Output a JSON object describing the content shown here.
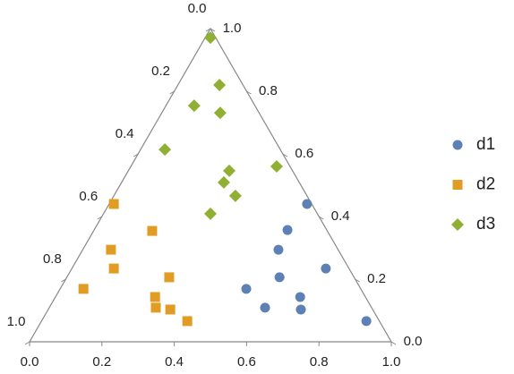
{
  "chart_data": {
    "type": "ternary",
    "xlim": [
      0,
      1
    ],
    "ylim": [
      0,
      1
    ],
    "bottom_ticks": [
      {
        "value": 0,
        "label": "0.0"
      },
      0.2,
      0.4,
      0.6,
      0.8,
      {
        "value": 1,
        "label": "1.0"
      }
    ],
    "right_ticks": [
      {
        "value": 0,
        "label": "0.0"
      },
      0.2,
      0.4,
      0.6,
      0.8,
      {
        "value": 1,
        "label": "1.0"
      }
    ],
    "left_ticks": [
      {
        "value": 0,
        "label": "0.0"
      },
      0.2,
      0.4,
      0.6,
      0.8,
      {
        "value": 1,
        "label": "1.0"
      }
    ],
    "series": [
      {
        "name": "d1",
        "color": "#5e81b5",
        "marker": "circle",
        "x": [
          0.767,
          0.713,
          0.688,
          0.819,
          0.691,
          0.599,
          0.748,
          0.651,
          0.75,
          0.931
        ],
        "values": [
          0.44,
          0.357,
          0.294,
          0.234,
          0.206,
          0.169,
          0.143,
          0.109,
          0.103,
          0.066
        ]
      },
      {
        "name": "d2",
        "color": "#e19c24",
        "marker": "square",
        "x": [
          0.233,
          0.339,
          0.225,
          0.233,
          0.386,
          0.149,
          0.347,
          0.349,
          0.389,
          0.436
        ],
        "values": [
          0.44,
          0.354,
          0.294,
          0.234,
          0.206,
          0.169,
          0.143,
          0.109,
          0.103,
          0.066
        ]
      },
      {
        "name": "d3",
        "color": "#8fb032",
        "marker": "diamond",
        "x": [
          0.5,
          0.525,
          0.455,
          0.527,
          0.374,
          0.683,
          0.552,
          0.537,
          0.569,
          0.5
        ],
        "values": [
          0.971,
          0.82,
          0.754,
          0.731,
          0.614,
          0.56,
          0.546,
          0.509,
          0.466,
          0.409
        ]
      }
    ]
  }
}
